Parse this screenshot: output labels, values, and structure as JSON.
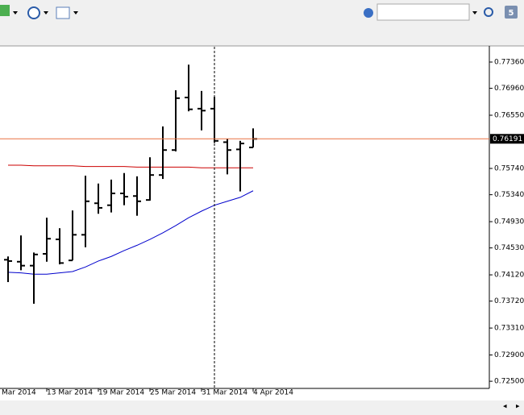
{
  "toolbar": {
    "badge": "5"
  },
  "chart_data": {
    "type": "ohlc",
    "first_x_label": "Mar 2014",
    "categories": [
      null,
      null,
      null,
      "13 Mar 2014",
      null,
      null,
      null,
      "19 Mar 2014",
      null,
      null,
      null,
      "25 Mar 2014",
      null,
      null,
      null,
      "31 Mar 2014",
      null,
      null,
      null,
      "4 Apr 2014"
    ],
    "open": [
      0.7435,
      0.7432,
      0.7426,
      0.7444,
      0.7466,
      0.7434,
      0.7473,
      0.7521,
      0.7518,
      0.7536,
      0.7532,
      0.7526,
      0.7564,
      0.7602,
      0.7682,
      0.7665,
      0.7665,
      0.7614,
      0.7603,
      0.7606
    ],
    "high": [
      0.744,
      0.7472,
      0.7446,
      0.7499,
      0.7483,
      0.751,
      0.7563,
      0.7551,
      0.7557,
      0.7567,
      0.7562,
      0.7591,
      0.7638,
      0.7693,
      0.7732,
      0.7692,
      0.7683,
      0.7619,
      0.7616,
      0.7635
    ],
    "low": [
      0.7401,
      0.7419,
      0.7368,
      0.7432,
      0.7428,
      0.7434,
      0.7454,
      0.7505,
      0.7507,
      0.7518,
      0.7502,
      0.7525,
      0.7558,
      0.76,
      0.7661,
      0.7632,
      0.7613,
      0.7565,
      0.7539,
      0.7606
    ],
    "close": [
      0.7433,
      0.7426,
      0.7443,
      0.7467,
      0.743,
      0.7473,
      0.7524,
      0.7514,
      0.7536,
      0.7531,
      0.7524,
      0.7564,
      0.7602,
      0.7681,
      0.7664,
      0.7662,
      0.7616,
      0.7602,
      0.7612,
      0.7619
    ],
    "color": "#000000",
    "lines": [
      {
        "color": "#0000cc",
        "values": [
          0.7416,
          0.7415,
          0.7413,
          0.7413,
          0.7415,
          0.7417,
          0.7424,
          0.7433,
          0.744,
          0.7449,
          0.7457,
          0.7466,
          0.7476,
          0.7487,
          0.7499,
          0.7509,
          0.7518,
          0.7524,
          0.753,
          0.754
        ]
      },
      {
        "color": "#cc0000",
        "values": [
          0.7579,
          0.7579,
          0.7578,
          0.7578,
          0.7578,
          0.7578,
          0.7577,
          0.7577,
          0.7577,
          0.7577,
          0.7576,
          0.7576,
          0.7576,
          0.7576,
          0.7576,
          0.7575,
          0.7575,
          0.7575,
          0.7575,
          0.7575
        ]
      }
    ],
    "bid": 0.76191,
    "bid_color": "#e87040",
    "ylim": [
      0.72391,
      0.77593
    ],
    "yticks": [
      {
        "value": 0.7736,
        "label": "0.77360"
      },
      0.7696,
      0.7655,
      0.7574,
      0.7534,
      0.7493,
      0.7453,
      0.7412,
      0.7372,
      0.7331,
      0.729,
      {
        "value": 0.725,
        "label": "0.72500"
      }
    ],
    "ytick_labels": [
      "0.77360",
      "0.76960",
      "0.76550",
      "0.75740",
      "0.75340",
      "0.74930",
      "0.74530",
      "0.74120",
      "0.73720",
      "0.73310",
      "0.72900",
      "0.72500"
    ]
  }
}
